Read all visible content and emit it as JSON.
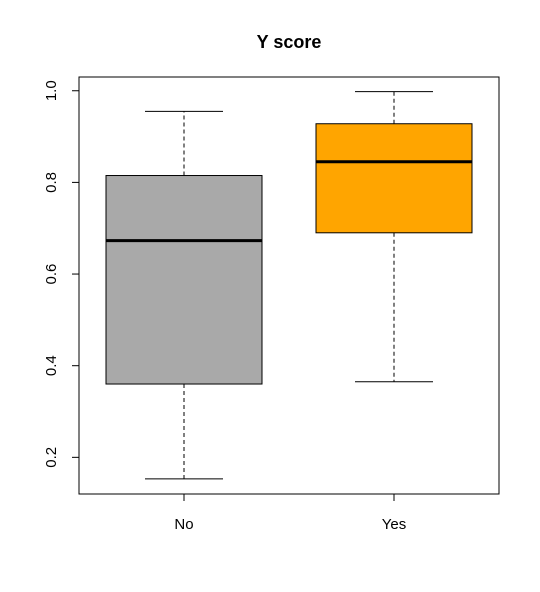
{
  "chart_data": {
    "type": "boxplot",
    "title": "Y score",
    "xlabel": "",
    "ylabel": "",
    "categories": [
      "No",
      "Yes"
    ],
    "ylim": [
      0.12,
      1.03
    ],
    "yticks": [
      "0.2",
      "0.4",
      "0.6",
      "0.8",
      "1.0"
    ],
    "grid": false,
    "legend": "none",
    "boxes": [
      {
        "name": "No",
        "whisker_low": 0.153,
        "q1": 0.36,
        "median": 0.673,
        "q3": 0.815,
        "whisker_high": 0.955,
        "color": "#a9a9a9"
      },
      {
        "name": "Yes",
        "whisker_low": 0.365,
        "q1": 0.69,
        "median": 0.845,
        "q3": 0.928,
        "whisker_high": 0.998,
        "color": "#ffa500"
      }
    ]
  }
}
